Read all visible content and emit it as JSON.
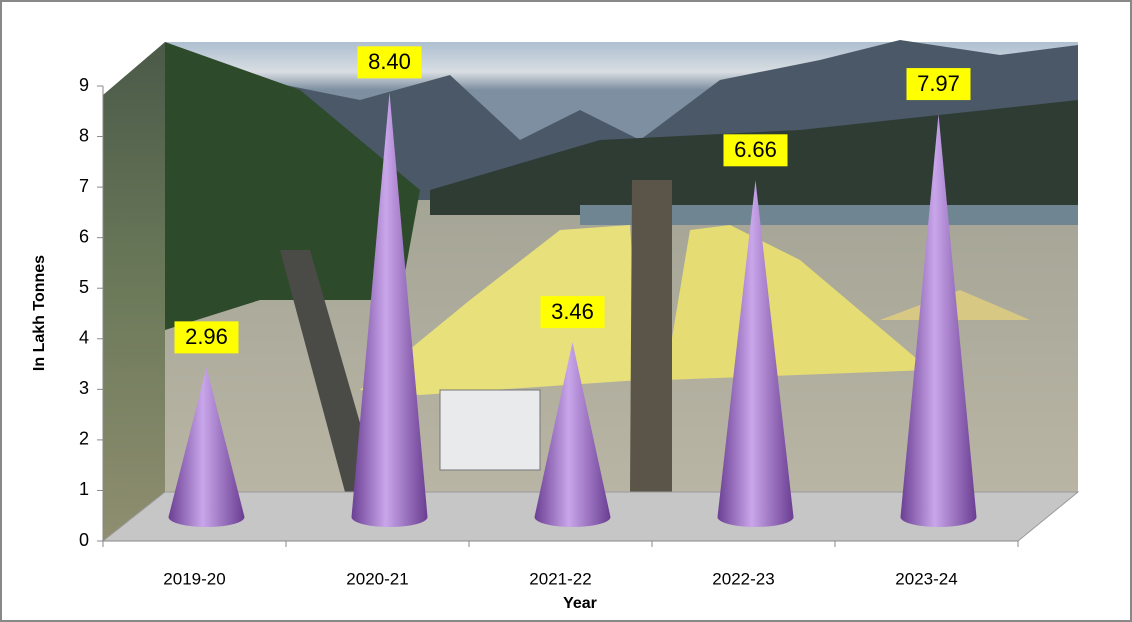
{
  "chart_data": {
    "type": "cone",
    "categories": [
      "2019-20",
      "2020-21",
      "2021-22",
      "2022-23",
      "2023-24"
    ],
    "values": [
      2.96,
      8.4,
      3.46,
      6.66,
      7.97
    ],
    "value_labels": [
      "2.96",
      "8.40",
      "3.46",
      "6.66",
      "7.97"
    ],
    "color": "#9b6fc4",
    "ylim": [
      0,
      9
    ],
    "yticks": [
      0,
      1,
      2,
      3,
      4,
      5,
      6,
      7,
      8,
      9
    ],
    "x_label": "Year",
    "y_label": "In Lakh Tonnes"
  }
}
